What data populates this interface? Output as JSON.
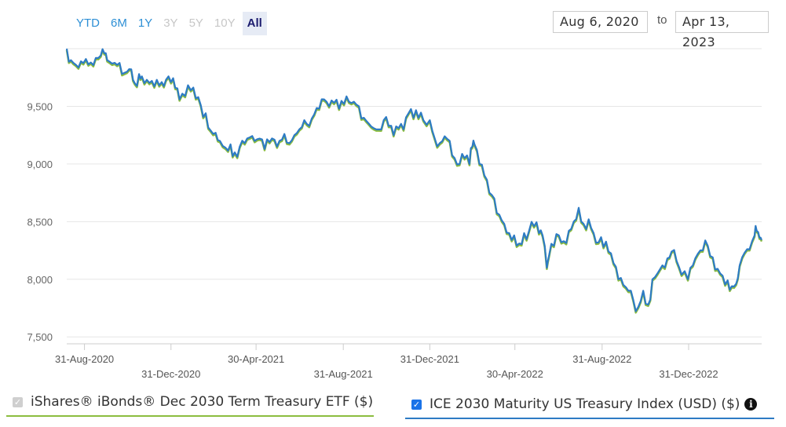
{
  "range_buttons": [
    {
      "label": "YTD",
      "state": "enabled"
    },
    {
      "label": "6M",
      "state": "enabled"
    },
    {
      "label": "1Y",
      "state": "enabled"
    },
    {
      "label": "3Y",
      "state": "disabled"
    },
    {
      "label": "5Y",
      "state": "disabled"
    },
    {
      "label": "10Y",
      "state": "disabled"
    },
    {
      "label": "All",
      "state": "active"
    }
  ],
  "date_range": {
    "from": "Aug 6, 2020",
    "separator": "to",
    "to": "Apr 13, 2023"
  },
  "legend": {
    "etf": {
      "label": "iShares® iBonds® Dec 2030 Term Treasury ETF ($)",
      "checked": false,
      "color": "#8cbd3f"
    },
    "index": {
      "label": "ICE 2030 Maturity US Treasury Index (USD) ($)",
      "checked": true,
      "color": "#2d7bc4",
      "icon": "info-icon"
    }
  },
  "chart_data": {
    "type": "line",
    "ylim": [
      7440,
      10000
    ],
    "yticks": [
      7500,
      8000,
      8500,
      9000,
      9500
    ],
    "ytick_labels": [
      "7,500",
      "8,000",
      "8,500",
      "9,000",
      "9,500"
    ],
    "xlim": [
      "2020-08-06",
      "2023-04-13"
    ],
    "xticks": [
      {
        "date": "2020-08-31",
        "label": "31-Aug-2020",
        "row": 0
      },
      {
        "date": "2020-12-31",
        "label": "31-Dec-2020",
        "row": 1
      },
      {
        "date": "2021-04-30",
        "label": "30-Apr-2021",
        "row": 0
      },
      {
        "date": "2021-08-31",
        "label": "31-Aug-2021",
        "row": 1
      },
      {
        "date": "2021-12-31",
        "label": "31-Dec-2021",
        "row": 0
      },
      {
        "date": "2022-04-30",
        "label": "30-Apr-2022",
        "row": 1
      },
      {
        "date": "2022-08-31",
        "label": "31-Aug-2022",
        "row": 0
      },
      {
        "date": "2022-12-31",
        "label": "31-Dec-2022",
        "row": 1
      }
    ],
    "grid": true,
    "series": [
      {
        "name": "iShares® iBonds® Dec 2030 Term Treasury ETF ($)",
        "color": "#8cbd3f",
        "offset": -12
      },
      {
        "name": "ICE 2030 Maturity US Treasury Index (USD) ($)",
        "color": "#2d7bc4",
        "offset": 0
      }
    ],
    "points": [
      [
        "2020-08-06",
        10000
      ],
      [
        "2020-08-12",
        9900
      ],
      [
        "2020-08-19",
        9860
      ],
      [
        "2020-08-26",
        9890
      ],
      [
        "2020-09-02",
        9910
      ],
      [
        "2020-09-09",
        9880
      ],
      [
        "2020-09-16",
        9920
      ],
      [
        "2020-09-23",
        9940
      ],
      [
        "2020-09-28",
        9960
      ],
      [
        "2020-10-02",
        9900
      ],
      [
        "2020-10-09",
        9870
      ],
      [
        "2020-10-16",
        9860
      ],
      [
        "2020-10-23",
        9780
      ],
      [
        "2020-10-30",
        9800
      ],
      [
        "2020-11-05",
        9820
      ],
      [
        "2020-11-10",
        9700
      ],
      [
        "2020-11-16",
        9780
      ],
      [
        "2020-11-20",
        9760
      ],
      [
        "2020-11-27",
        9730
      ],
      [
        "2020-12-04",
        9720
      ],
      [
        "2020-12-11",
        9730
      ],
      [
        "2020-12-18",
        9710
      ],
      [
        "2020-12-24",
        9730
      ],
      [
        "2020-12-31",
        9710
      ],
      [
        "2021-01-06",
        9660
      ],
      [
        "2021-01-12",
        9560
      ],
      [
        "2021-01-20",
        9590
      ],
      [
        "2021-01-28",
        9640
      ],
      [
        "2021-02-04",
        9570
      ],
      [
        "2021-02-11",
        9510
      ],
      [
        "2021-02-18",
        9440
      ],
      [
        "2021-02-25",
        9290
      ],
      [
        "2021-03-04",
        9270
      ],
      [
        "2021-03-10",
        9200
      ],
      [
        "2021-03-18",
        9140
      ],
      [
        "2021-03-25",
        9170
      ],
      [
        "2021-03-31",
        9100
      ],
      [
        "2021-04-07",
        9150
      ],
      [
        "2021-04-14",
        9180
      ],
      [
        "2021-04-21",
        9230
      ],
      [
        "2021-04-28",
        9200
      ],
      [
        "2021-05-05",
        9220
      ],
      [
        "2021-05-12",
        9130
      ],
      [
        "2021-05-19",
        9190
      ],
      [
        "2021-05-26",
        9210
      ],
      [
        "2021-06-02",
        9200
      ],
      [
        "2021-06-09",
        9260
      ],
      [
        "2021-06-16",
        9180
      ],
      [
        "2021-06-23",
        9250
      ],
      [
        "2021-06-30",
        9300
      ],
      [
        "2021-07-07",
        9380
      ],
      [
        "2021-07-14",
        9330
      ],
      [
        "2021-07-21",
        9430
      ],
      [
        "2021-07-28",
        9480
      ],
      [
        "2021-08-04",
        9560
      ],
      [
        "2021-08-11",
        9500
      ],
      [
        "2021-08-18",
        9530
      ],
      [
        "2021-08-25",
        9480
      ],
      [
        "2021-09-01",
        9520
      ],
      [
        "2021-09-08",
        9540
      ],
      [
        "2021-09-15",
        9540
      ],
      [
        "2021-09-22",
        9500
      ],
      [
        "2021-09-29",
        9400
      ],
      [
        "2021-10-06",
        9350
      ],
      [
        "2021-10-13",
        9310
      ],
      [
        "2021-10-20",
        9300
      ],
      [
        "2021-10-27",
        9380
      ],
      [
        "2021-11-03",
        9330
      ],
      [
        "2021-11-10",
        9250
      ],
      [
        "2021-11-17",
        9310
      ],
      [
        "2021-11-24",
        9300
      ],
      [
        "2021-12-01",
        9440
      ],
      [
        "2021-12-08",
        9400
      ],
      [
        "2021-12-15",
        9400
      ],
      [
        "2021-12-22",
        9380
      ],
      [
        "2021-12-31",
        9380
      ],
      [
        "2022-01-07",
        9220
      ],
      [
        "2022-01-14",
        9180
      ],
      [
        "2022-01-21",
        9240
      ],
      [
        "2022-01-28",
        9200
      ],
      [
        "2022-02-04",
        9050
      ],
      [
        "2022-02-11",
        9000
      ],
      [
        "2022-02-18",
        9050
      ],
      [
        "2022-02-25",
        9000
      ],
      [
        "2022-03-01",
        9150
      ],
      [
        "2022-03-04",
        9170
      ],
      [
        "2022-03-11",
        9000
      ],
      [
        "2022-03-18",
        8900
      ],
      [
        "2022-03-25",
        8750
      ],
      [
        "2022-04-01",
        8700
      ],
      [
        "2022-04-08",
        8560
      ],
      [
        "2022-04-15",
        8480
      ],
      [
        "2022-04-22",
        8400
      ],
      [
        "2022-04-29",
        8380
      ],
      [
        "2022-05-06",
        8310
      ],
      [
        "2022-05-13",
        8400
      ],
      [
        "2022-05-20",
        8420
      ],
      [
        "2022-05-27",
        8460
      ],
      [
        "2022-06-03",
        8400
      ],
      [
        "2022-06-08",
        8380
      ],
      [
        "2022-06-14",
        8100
      ],
      [
        "2022-06-17",
        8200
      ],
      [
        "2022-06-24",
        8290
      ],
      [
        "2022-07-01",
        8380
      ],
      [
        "2022-07-08",
        8330
      ],
      [
        "2022-07-15",
        8420
      ],
      [
        "2022-07-22",
        8500
      ],
      [
        "2022-07-29",
        8620
      ],
      [
        "2022-08-05",
        8480
      ],
      [
        "2022-08-12",
        8520
      ],
      [
        "2022-08-19",
        8400
      ],
      [
        "2022-08-26",
        8320
      ],
      [
        "2022-09-02",
        8280
      ],
      [
        "2022-09-09",
        8240
      ],
      [
        "2022-09-16",
        8140
      ],
      [
        "2022-09-23",
        8000
      ],
      [
        "2022-09-30",
        7950
      ],
      [
        "2022-10-07",
        7900
      ],
      [
        "2022-10-14",
        7820
      ],
      [
        "2022-10-21",
        7760
      ],
      [
        "2022-10-28",
        7900
      ],
      [
        "2022-11-04",
        7780
      ],
      [
        "2022-11-10",
        8000
      ],
      [
        "2022-11-17",
        8050
      ],
      [
        "2022-11-24",
        8120
      ],
      [
        "2022-12-01",
        8180
      ],
      [
        "2022-12-07",
        8240
      ],
      [
        "2022-12-14",
        8160
      ],
      [
        "2022-12-21",
        8040
      ],
      [
        "2022-12-30",
        8000
      ],
      [
        "2023-01-06",
        8120
      ],
      [
        "2023-01-13",
        8220
      ],
      [
        "2023-01-20",
        8250
      ],
      [
        "2023-01-27",
        8290
      ],
      [
        "2023-02-03",
        8190
      ],
      [
        "2023-02-10",
        8090
      ],
      [
        "2023-02-17",
        8030
      ],
      [
        "2023-02-24",
        7990
      ],
      [
        "2023-03-02",
        7940
      ],
      [
        "2023-03-08",
        7960
      ],
      [
        "2023-03-13",
        8120
      ],
      [
        "2023-03-20",
        8230
      ],
      [
        "2023-03-27",
        8260
      ],
      [
        "2023-04-03",
        8380
      ],
      [
        "2023-04-06",
        8420
      ],
      [
        "2023-04-10",
        8360
      ],
      [
        "2023-04-13",
        8340
      ]
    ]
  }
}
